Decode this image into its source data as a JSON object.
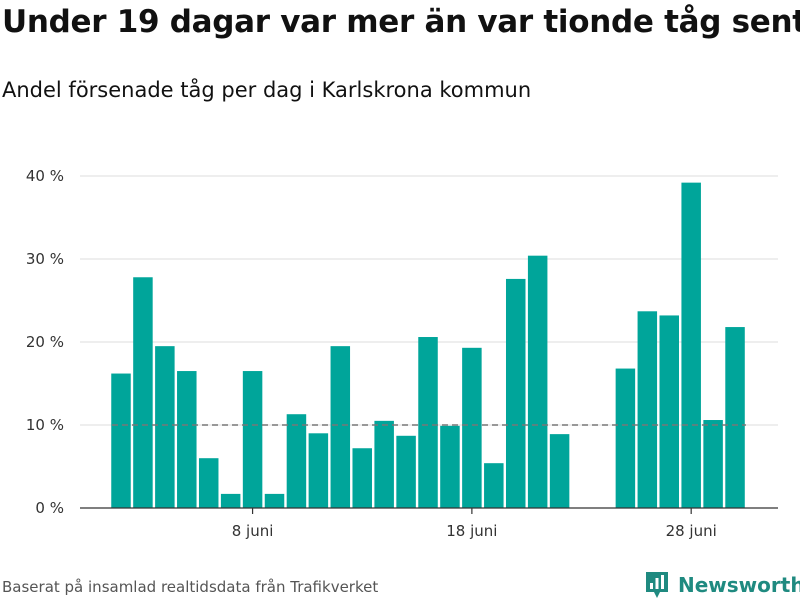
{
  "header": {
    "title": "Under 19 dagar var mer än var tionde tåg sent",
    "subtitle": "Andel försenade tåg per dag i Karlskrona kommun"
  },
  "footer": {
    "source": "Baserat på insamlad realtidsdata från Trafikverket",
    "brand": "Newsworthy",
    "brand_icon": "newsworthy-logo-icon"
  },
  "colors": {
    "bar": "#00a59a",
    "grid": "#dddddd",
    "axis": "#333333",
    "reference_line": "#777777",
    "brand": "#1f8a80"
  },
  "chart_data": {
    "type": "bar",
    "title": "Under 19 dagar var mer än var tionde tåg sent",
    "subtitle": "Andel försenade tåg per dag i Karlskrona kommun",
    "xlabel": "",
    "ylabel": "",
    "x_range": [
      "2020-06-01",
      "2020-06-30"
    ],
    "ylim": [
      0,
      40
    ],
    "y_ticks": [
      0,
      10,
      20,
      30,
      40
    ],
    "y_tick_labels": [
      "0 %",
      "10 %",
      "20 %",
      "30 %",
      "40 %"
    ],
    "x_ticks": [
      "2020-06-08",
      "2020-06-18",
      "2020-06-28"
    ],
    "x_tick_labels": [
      "8 juni",
      "18 juni",
      "28 juni"
    ],
    "reference_line": {
      "y": 10,
      "style": "dashed"
    },
    "grid": "horizontal",
    "legend": "none",
    "x": [
      "2020-06-02",
      "2020-06-03",
      "2020-06-04",
      "2020-06-05",
      "2020-06-06",
      "2020-06-07",
      "2020-06-08",
      "2020-06-09",
      "2020-06-10",
      "2020-06-11",
      "2020-06-12",
      "2020-06-13",
      "2020-06-14",
      "2020-06-15",
      "2020-06-16",
      "2020-06-17",
      "2020-06-18",
      "2020-06-19",
      "2020-06-20",
      "2020-06-21",
      "2020-06-22",
      "2020-06-23",
      "2020-06-24",
      "2020-06-25",
      "2020-06-26",
      "2020-06-27",
      "2020-06-28",
      "2020-06-29",
      "2020-06-30"
    ],
    "values": [
      16.2,
      27.8,
      19.5,
      16.5,
      6.0,
      1.7,
      16.5,
      1.7,
      11.3,
      9.0,
      19.5,
      7.2,
      10.5,
      8.7,
      20.6,
      9.9,
      19.3,
      5.4,
      27.6,
      30.4,
      8.9,
      null,
      null,
      16.8,
      23.7,
      23.2,
      39.2,
      10.6,
      21.8
    ]
  }
}
